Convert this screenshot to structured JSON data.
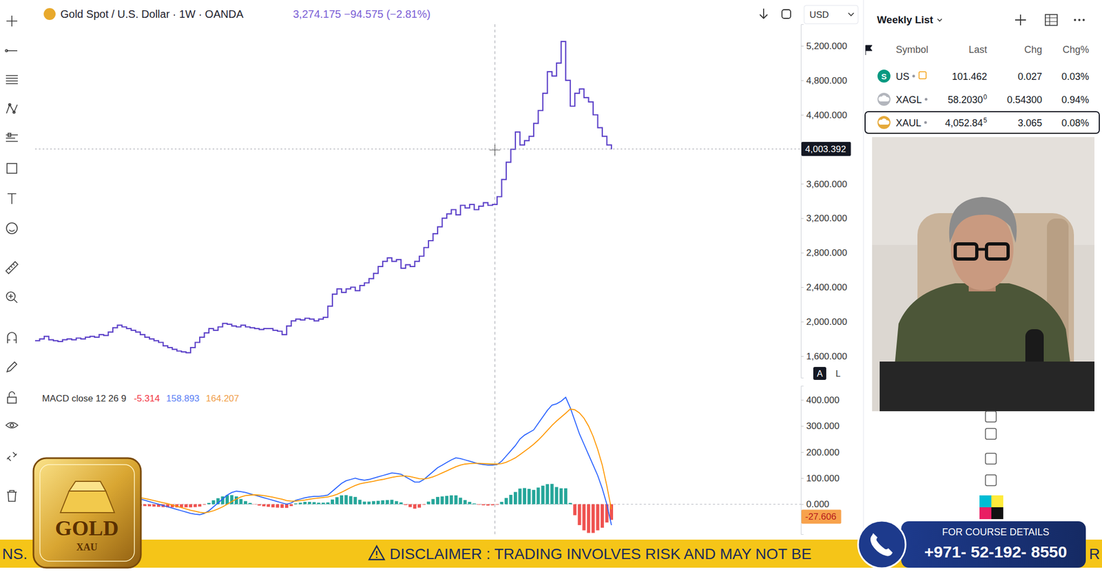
{
  "chart_data": [
    {
      "type": "line",
      "title": "Gold Spot / U.S. Dollar · 1W · OANDA",
      "subtitle": "3,274.175 −94.575 (−2.81%)",
      "color": "#5a3fc8",
      "line_style": "step",
      "values": [
        1780,
        1800,
        1830,
        1790,
        1780,
        1770,
        1790,
        1800,
        1790,
        1810,
        1800,
        1820,
        1830,
        1820,
        1850,
        1840,
        1880,
        1930,
        1960,
        1940,
        1920,
        1900,
        1880,
        1850,
        1820,
        1800,
        1780,
        1760,
        1720,
        1700,
        1680,
        1660,
        1650,
        1640,
        1700,
        1760,
        1820,
        1870,
        1920,
        1900,
        1940,
        1980,
        1970,
        1950,
        1940,
        1960,
        1940,
        1930,
        1920,
        1910,
        1920,
        1920,
        1900,
        1890,
        1850,
        1950,
        2010,
        2030,
        2020,
        2040,
        2030,
        2010,
        2030,
        2050,
        2180,
        2320,
        2380,
        2340,
        2380,
        2400,
        2360,
        2420,
        2450,
        2500,
        2560,
        2640,
        2700,
        2740,
        2700,
        2720,
        2620,
        2660,
        2640,
        2700,
        2760,
        2860,
        2940,
        3020,
        3100,
        3200,
        3250,
        3300,
        3240,
        3350,
        3320,
        3360,
        3300,
        3340,
        3380,
        3350,
        3360,
        3450,
        3650,
        3850,
        4000,
        4200,
        4050,
        4100,
        4150,
        4300,
        4450,
        4650,
        4900,
        4850,
        5000,
        5250,
        4800,
        4500,
        4650,
        4700,
        4600,
        4550,
        4400,
        4250,
        4150,
        4050,
        4000
      ],
      "ylim": [
        1350,
        5450
      ],
      "yticks": [
        {
          "value": 1600,
          "label": "1,600.000"
        },
        {
          "value": 2000,
          "label": "2,000.000"
        },
        {
          "value": 2400,
          "label": "2,400.000"
        },
        {
          "value": 2800,
          "label": "2,800.000"
        },
        {
          "value": 3200,
          "label": "3,200.000"
        },
        {
          "value": 3600,
          "label": "3,600.000"
        },
        {
          "value": 4400,
          "label": "4,400.000"
        },
        {
          "value": 4800,
          "label": "4,800.000"
        },
        {
          "value": 5200,
          "label": "5,200.000"
        }
      ],
      "grid": false,
      "tick_labels": "y",
      "annotations": [
        {
          "value": 4003.392,
          "label": "4,003.392",
          "color": "#131722",
          "line_style": "dashed"
        }
      ]
    },
    {
      "type": "line",
      "title": "MACD close 12 26 9",
      "series": [
        {
          "type": "bar",
          "color": "#26a69a",
          "values": [
            null,
            null,
            null,
            null,
            null,
            null,
            null,
            null,
            null,
            null,
            null,
            null,
            null,
            null,
            null,
            null,
            null,
            null,
            null,
            null,
            null,
            null,
            null,
            -5,
            -7,
            -8,
            -9,
            -10,
            -11,
            -12,
            -12,
            -12,
            -12,
            -12,
            -12,
            -11,
            -9,
            -2,
            5,
            15,
            23,
            30,
            35,
            35,
            30,
            20,
            12,
            5,
            -1,
            -5,
            -8,
            -10,
            -12,
            -13,
            -14,
            -14,
            -7,
            3,
            6,
            9,
            9,
            8,
            6,
            6,
            7,
            18,
            27,
            34,
            35,
            31,
            28,
            17,
            10,
            10,
            12,
            13,
            15,
            16,
            17,
            12,
            7,
            -3,
            -11,
            -17,
            -13,
            -2,
            10,
            20,
            28,
            30,
            32,
            34,
            34,
            25,
            16,
            9,
            3,
            -2,
            -4,
            -5,
            -4,
            -2,
            9,
            24,
            36,
            47,
            60,
            62,
            59,
            55,
            64,
            71,
            77,
            78,
            66,
            61,
            61,
            5,
            -42,
            -80,
            -100,
            -110,
            -110,
            -100,
            -90,
            -70,
            -60
          ]
        },
        {
          "type": "line",
          "color": "#2962ff",
          "line_style": "solid",
          "values": [
            null,
            null,
            null,
            null,
            null,
            null,
            null,
            null,
            null,
            null,
            null,
            null,
            null,
            null,
            null,
            null,
            null,
            null,
            null,
            null,
            null,
            null,
            null,
            20,
            15,
            10,
            5,
            0,
            -5,
            -10,
            -15,
            -20,
            -25,
            -30,
            -35,
            -38,
            -40,
            -35,
            -25,
            -10,
            5,
            20,
            35,
            45,
            50,
            48,
            45,
            40,
            35,
            30,
            25,
            20,
            15,
            10,
            5,
            0,
            5,
            15,
            20,
            25,
            28,
            30,
            30,
            32,
            35,
            50,
            65,
            80,
            90,
            95,
            100,
            95,
            92,
            95,
            100,
            105,
            110,
            115,
            120,
            118,
            115,
            105,
            95,
            85,
            85,
            95,
            110,
            125,
            140,
            150,
            160,
            170,
            178,
            175,
            170,
            165,
            160,
            155,
            152,
            150,
            150,
            152,
            165,
            185,
            205,
            225,
            250,
            265,
            275,
            285,
            310,
            335,
            360,
            380,
            385,
            395,
            410,
            370,
            320,
            270,
            230,
            190,
            150,
            110,
            60,
            0,
            -80
          ]
        },
        {
          "type": "line",
          "color": "#ff9800",
          "line_style": "solid",
          "values": [
            null,
            null,
            null,
            null,
            null,
            null,
            null,
            null,
            null,
            null,
            null,
            null,
            null,
            null,
            null,
            null,
            null,
            null,
            null,
            null,
            null,
            null,
            null,
            25,
            22,
            18,
            14,
            10,
            6,
            2,
            -3,
            -8,
            -13,
            -18,
            -23,
            -27,
            -31,
            -33,
            -30,
            -25,
            -18,
            -10,
            0,
            10,
            20,
            28,
            33,
            35,
            36,
            35,
            33,
            30,
            27,
            23,
            19,
            14,
            12,
            12,
            14,
            16,
            19,
            22,
            24,
            26,
            28,
            32,
            38,
            46,
            55,
            64,
            72,
            78,
            82,
            85,
            88,
            92,
            95,
            99,
            103,
            106,
            108,
            108,
            106,
            102,
            98,
            97,
            100,
            105,
            112,
            120,
            128,
            136,
            144,
            150,
            154,
            156,
            157,
            157,
            156,
            155,
            154,
            154,
            156,
            161,
            169,
            178,
            190,
            203,
            216,
            230,
            246,
            264,
            283,
            302,
            319,
            334,
            349,
            365,
            362,
            350,
            330,
            300,
            260,
            210,
            150,
            70,
            -20
          ]
        }
      ],
      "ylim": [
        -115,
        454
      ],
      "yticks": [
        {
          "value": 0,
          "label": "0.000"
        },
        {
          "value": 100,
          "label": "100.000"
        },
        {
          "value": 200,
          "label": "200.000"
        },
        {
          "value": 300,
          "label": "300.000"
        },
        {
          "value": 400,
          "label": "400.000"
        }
      ],
      "grid": false,
      "tick_labels": "y",
      "annotations": [
        {
          "label": "-5.314",
          "color": "#f23645"
        },
        {
          "label": "158.893",
          "color": "#5b7ff5"
        },
        {
          "label": "164.207",
          "color": "#f0a04b"
        },
        {
          "value": -27.606,
          "label": "-27.606",
          "color": "#f7a24c"
        }
      ]
    }
  ],
  "page": {
    "currency": "USD",
    "scale_buttons": [
      "A",
      "L"
    ],
    "watchlist": {
      "title": "Weekly List",
      "columns": [
        "Symbol",
        "Last",
        "Chg",
        "Chg%"
      ],
      "rows": [
        {
          "icon": "S",
          "symbol": "US",
          "last": "101.462",
          "chg": "0.027",
          "chg_pct": "0.03%"
        },
        {
          "symbol": "XAGL",
          "last": "58.2030",
          "last_sup": "0",
          "chg": "0.54300",
          "chg_pct": "0.94%"
        },
        {
          "symbol": "XAUL",
          "last": "4,052.84",
          "last_sup": "5",
          "chg": "3.065",
          "chg_pct": "0.08%"
        }
      ]
    },
    "logo": {
      "line1": "GOLD",
      "line2": "XAU"
    },
    "ticker": {
      "left": "NS.",
      "main": "DISCLAIMER : TRADING INVOLVES RISK AND MAY NOT BE",
      "right": "R"
    },
    "contact": {
      "caption": "FOR COURSE DETAILS",
      "phone": "+971- 52-192- 8550"
    }
  }
}
